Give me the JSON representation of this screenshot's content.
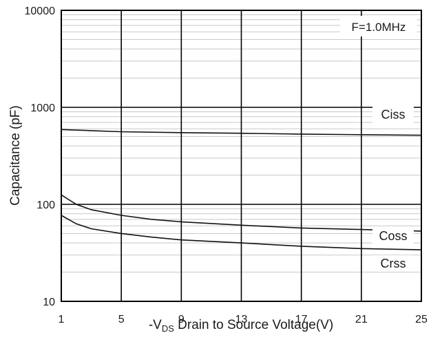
{
  "chart_data": {
    "type": "line",
    "xlabel_prefix": "-V",
    "xlabel_sub": "DS",
    "xlabel_suffix": " Drain to Source Voltage(V)",
    "ylabel": "Capacitance (pF)",
    "annotation": "F=1.0MHz",
    "x_ticks": [
      "1",
      "5",
      "9",
      "13",
      "17",
      "21",
      "25"
    ],
    "y_ticks": [
      "10",
      "100",
      "1000",
      "10000"
    ],
    "xlim": [
      1,
      25
    ],
    "ylim": [
      10,
      10000
    ],
    "yscale": "log",
    "grid": true,
    "series": [
      {
        "name": "Ciss",
        "x": [
          1,
          3,
          5,
          9,
          13,
          17,
          21,
          25
        ],
        "y": [
          590,
          575,
          560,
          548,
          540,
          530,
          522,
          515
        ]
      },
      {
        "name": "Coss",
        "x": [
          1,
          2,
          3,
          5,
          7,
          9,
          13,
          17,
          21,
          25
        ],
        "y": [
          125,
          100,
          88,
          77,
          70,
          66,
          61,
          57,
          55,
          53
        ]
      },
      {
        "name": "Crss",
        "x": [
          1,
          2,
          3,
          5,
          7,
          9,
          13,
          17,
          21,
          25
        ],
        "y": [
          77,
          63,
          56,
          50,
          46,
          43,
          40,
          37,
          35,
          34
        ]
      }
    ]
  }
}
